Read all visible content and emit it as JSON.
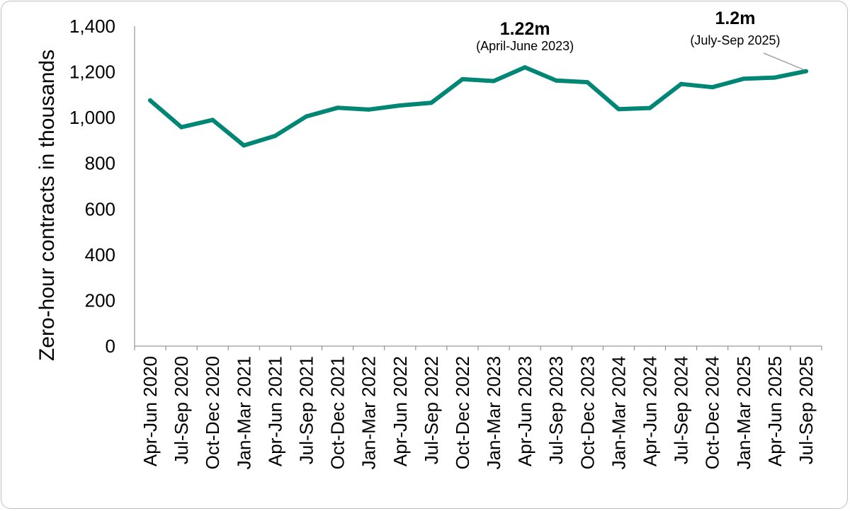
{
  "chart_data": {
    "type": "line",
    "title": "",
    "xlabel": "",
    "ylabel": "Zero-hour contracts in thousands",
    "ylim": [
      0,
      1400
    ],
    "yticks": [
      "0",
      "200",
      "400",
      "600",
      "800",
      "1,000",
      "1,200",
      "1,400"
    ],
    "grid": false,
    "legend": "none",
    "categories": [
      "Apr-Jun 2020",
      "Jul-Sep 2020",
      "Oct-Dec 2020",
      "Jan-Mar 2021",
      "Apr-Jun 2021",
      "Jul-Sep 2021",
      "Oct-Dec 2021",
      "Jan-Mar 2022",
      "Apr-Jun 2022",
      "Jul-Sep 2022",
      "Oct-Dec 2022",
      "Jan-Mar 2023",
      "Apr-Jun 2023",
      "Jul-Sep 2023",
      "Oct-Dec 2023",
      "Jan-Mar 2024",
      "Apr-Jun 2024",
      "Jul-Sep 2024",
      "Oct-Dec 2024",
      "Jan-Mar 2025",
      "Apr-Jun 2025",
      "Jul-Sep 2025"
    ],
    "series": [
      {
        "color": "#008675",
        "values": [
          1075,
          958,
          990,
          878,
          920,
          1005,
          1043,
          1035,
          1053,
          1065,
          1168,
          1160,
          1220,
          1162,
          1155,
          1037,
          1042,
          1147,
          1133,
          1170,
          1175,
          1203
        ]
      }
    ],
    "annotations": [
      {
        "label": "1.22m",
        "sublabel": "(April-June 2023)",
        "category_index": 12
      },
      {
        "label": "1.2m",
        "sublabel": "(July-Sep 2025)",
        "category_index": 21
      }
    ]
  }
}
